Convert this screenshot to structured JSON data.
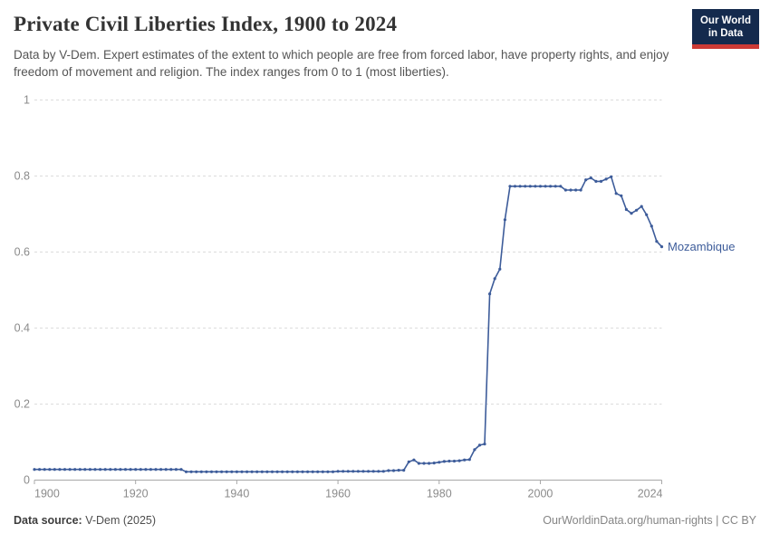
{
  "header": {
    "title": "Private Civil Liberties Index, 1900 to 2024",
    "subtitle": "Data by V-Dem. Expert estimates of the extent to which people are free from forced labor, have property rights, and enjoy freedom of movement and religion. The index ranges from 0 to 1 (most liberties).",
    "logo_line1": "Our World",
    "logo_line2": "in Data"
  },
  "footer": {
    "source_label": "Data source:",
    "source_value": " V-Dem (2025)",
    "credit": "OurWorldinData.org/human-rights | CC BY"
  },
  "colors": {
    "line": "#3d5c9a",
    "grid": "#dcdcdc",
    "axis": "#a8a8a8",
    "tick_text": "#8b8b8b",
    "logo_bg": "#142a4d",
    "logo_stripe": "#cc3a35"
  },
  "chart_data": {
    "type": "line",
    "title": "Private Civil Liberties Index, 1900 to 2024",
    "end_label": "Mozambique",
    "xlim": [
      1900,
      2024
    ],
    "ylim": [
      0,
      1
    ],
    "grid": "dashed-horizontal",
    "legend_position": "end-of-line-label",
    "x_ticks": [
      {
        "v": 1900,
        "label": "1900"
      },
      {
        "v": 1920,
        "label": "1920"
      },
      {
        "v": 1940,
        "label": "1940"
      },
      {
        "v": 1960,
        "label": "1960"
      },
      {
        "v": 1980,
        "label": "1980"
      },
      {
        "v": 2000,
        "label": "2000"
      },
      {
        "v": 2024,
        "label": "2024"
      }
    ],
    "y_ticks": [
      {
        "v": 0,
        "label": "0"
      },
      {
        "v": 0.2,
        "label": "0.2"
      },
      {
        "v": 0.4,
        "label": "0.4"
      },
      {
        "v": 0.6,
        "label": "0.6"
      },
      {
        "v": 0.8,
        "label": "0.8"
      },
      {
        "v": 1,
        "label": "1"
      }
    ],
    "series": [
      {
        "name": "Mozambique",
        "start_year": 1900,
        "values": [
          0.028,
          0.028,
          0.028,
          0.028,
          0.028,
          0.028,
          0.028,
          0.028,
          0.028,
          0.028,
          0.028,
          0.028,
          0.028,
          0.028,
          0.028,
          0.028,
          0.028,
          0.028,
          0.028,
          0.028,
          0.028,
          0.028,
          0.028,
          0.028,
          0.028,
          0.028,
          0.028,
          0.028,
          0.028,
          0.028,
          0.022,
          0.022,
          0.022,
          0.022,
          0.022,
          0.022,
          0.022,
          0.022,
          0.022,
          0.022,
          0.022,
          0.022,
          0.022,
          0.022,
          0.022,
          0.022,
          0.022,
          0.022,
          0.022,
          0.022,
          0.022,
          0.022,
          0.022,
          0.022,
          0.022,
          0.022,
          0.022,
          0.022,
          0.022,
          0.022,
          0.023,
          0.023,
          0.023,
          0.023,
          0.023,
          0.023,
          0.023,
          0.023,
          0.023,
          0.023,
          0.025,
          0.025,
          0.026,
          0.026,
          0.048,
          0.053,
          0.044,
          0.044,
          0.044,
          0.045,
          0.047,
          0.049,
          0.05,
          0.05,
          0.051,
          0.053,
          0.054,
          0.08,
          0.092,
          0.095,
          0.49,
          0.53,
          0.555,
          0.685,
          0.773,
          0.773,
          0.773,
          0.773,
          0.773,
          0.773,
          0.773,
          0.773,
          0.773,
          0.773,
          0.773,
          0.763,
          0.763,
          0.763,
          0.763,
          0.79,
          0.795,
          0.786,
          0.786,
          0.792,
          0.798,
          0.754,
          0.748,
          0.712,
          0.702,
          0.71,
          0.72,
          0.698,
          0.668,
          0.628,
          0.614
        ]
      }
    ]
  }
}
